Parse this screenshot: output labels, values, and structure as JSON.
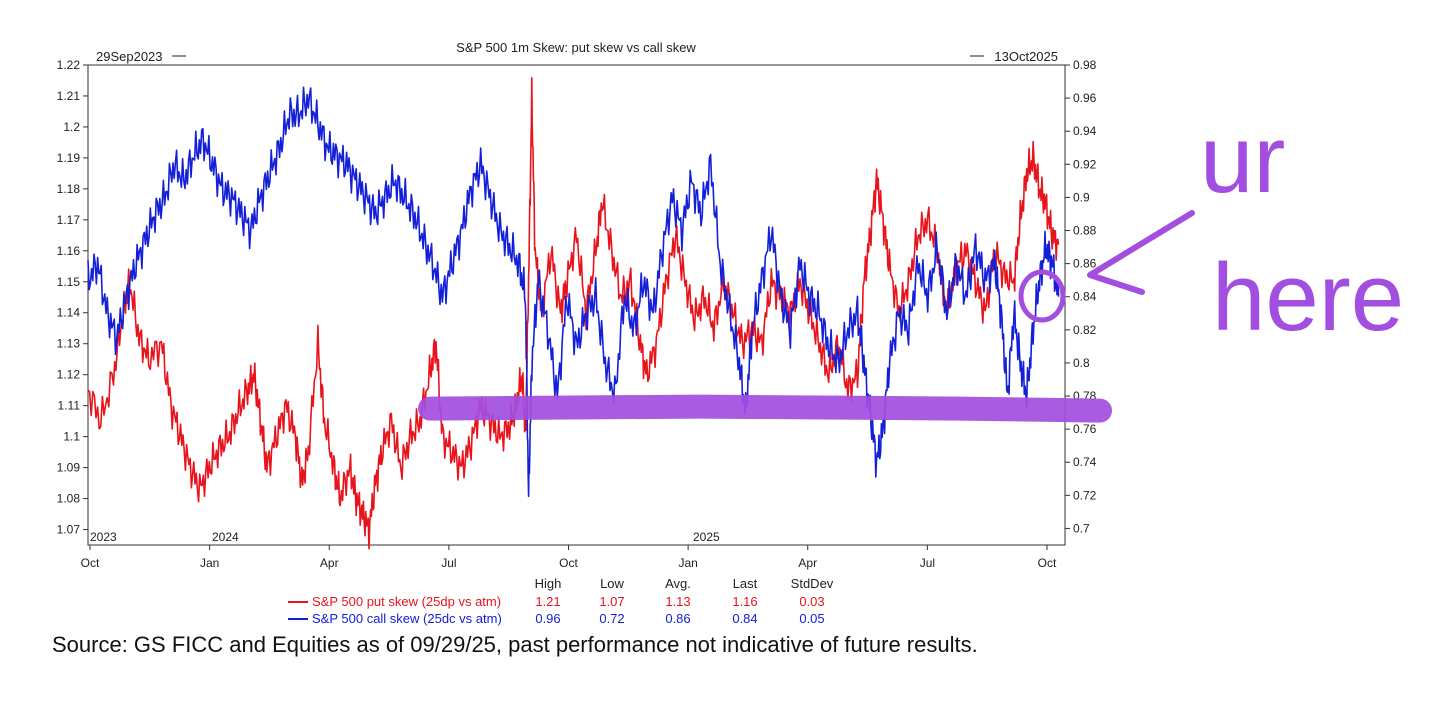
{
  "chart_data": {
    "type": "line",
    "title": "S&P 500 1m Skew: put skew vs call skew",
    "start_date_label": "29Sep2023",
    "end_date_label": "13Oct2025",
    "x_tick_labels": [
      "Oct",
      "Jan",
      "Apr",
      "Jul",
      "Oct",
      "Jan",
      "Apr",
      "Jul",
      "Oct"
    ],
    "x_year_labels": [
      "2023",
      "2024",
      "2025"
    ],
    "left_axis": {
      "ylim": [
        1.065,
        1.22
      ],
      "ticks": [
        "1.07",
        "1.08",
        "1.09",
        "1.1",
        "1.11",
        "1.12",
        "1.13",
        "1.14",
        "1.15",
        "1.16",
        "1.17",
        "1.18",
        "1.19",
        "1.2",
        "1.21",
        "1.22"
      ]
    },
    "right_axis": {
      "ylim": [
        0.69,
        0.98
      ],
      "ticks": [
        "0.7",
        "0.72",
        "0.74",
        "0.76",
        "0.78",
        "0.8",
        "0.82",
        "0.84",
        "0.86",
        "0.88",
        "0.9",
        "0.92",
        "0.94",
        "0.96",
        "0.98"
      ]
    },
    "series": [
      {
        "name": "S&P 500 put skew (25dp vs atm)",
        "axis": "left",
        "color": "#e8141c",
        "points": [
          [
            0,
            1.115
          ],
          [
            0.4,
            1.105
          ],
          [
            0.8,
            1.12
          ],
          [
            1.1,
            1.14
          ],
          [
            1.3,
            1.15
          ],
          [
            1.6,
            1.132
          ],
          [
            1.9,
            1.125
          ],
          [
            2.3,
            1.13
          ],
          [
            2.6,
            1.11
          ],
          [
            2.9,
            1.1
          ],
          [
            3.2,
            1.09
          ],
          [
            3.5,
            1.083
          ],
          [
            3.8,
            1.09
          ],
          [
            4.1,
            1.096
          ],
          [
            4.4,
            1.1
          ],
          [
            4.7,
            1.108
          ],
          [
            5.0,
            1.115
          ],
          [
            5.2,
            1.12
          ],
          [
            5.4,
            1.106
          ],
          [
            5.6,
            1.09
          ],
          [
            5.9,
            1.1
          ],
          [
            6.2,
            1.11
          ],
          [
            6.5,
            1.1
          ],
          [
            6.7,
            1.085
          ],
          [
            6.9,
            1.095
          ],
          [
            7.2,
            1.13
          ],
          [
            7.4,
            1.105
          ],
          [
            7.7,
            1.09
          ],
          [
            7.9,
            1.08
          ],
          [
            8.2,
            1.09
          ],
          [
            8.4,
            1.08
          ],
          [
            8.6,
            1.075
          ],
          [
            8.8,
            1.07
          ],
          [
            9.0,
            1.085
          ],
          [
            9.2,
            1.095
          ],
          [
            9.5,
            1.105
          ],
          [
            9.8,
            1.09
          ],
          [
            10.1,
            1.1
          ],
          [
            10.4,
            1.105
          ],
          [
            10.7,
            1.12
          ],
          [
            10.9,
            1.13
          ],
          [
            11.1,
            1.1
          ],
          [
            11.4,
            1.095
          ],
          [
            11.7,
            1.09
          ],
          [
            12.0,
            1.098
          ],
          [
            12.3,
            1.11
          ],
          [
            12.6,
            1.105
          ],
          [
            12.9,
            1.1
          ],
          [
            13.2,
            1.103
          ],
          [
            13.4,
            1.11
          ],
          [
            13.6,
            1.12
          ],
          [
            13.7,
            1.1
          ],
          [
            13.8,
            1.15
          ],
          [
            13.9,
            1.21
          ],
          [
            14.0,
            1.16
          ],
          [
            14.2,
            1.14
          ],
          [
            14.5,
            1.16
          ],
          [
            14.8,
            1.14
          ],
          [
            15.0,
            1.15
          ],
          [
            15.3,
            1.165
          ],
          [
            15.6,
            1.14
          ],
          [
            15.9,
            1.16
          ],
          [
            16.1,
            1.176
          ],
          [
            16.4,
            1.16
          ],
          [
            16.7,
            1.145
          ],
          [
            17.0,
            1.15
          ],
          [
            17.3,
            1.13
          ],
          [
            17.5,
            1.12
          ],
          [
            17.8,
            1.13
          ],
          [
            18.1,
            1.15
          ],
          [
            18.4,
            1.165
          ],
          [
            18.7,
            1.15
          ],
          [
            19.0,
            1.138
          ],
          [
            19.3,
            1.145
          ],
          [
            19.6,
            1.135
          ],
          [
            19.9,
            1.15
          ],
          [
            20.2,
            1.14
          ],
          [
            20.5,
            1.13
          ],
          [
            20.8,
            1.135
          ],
          [
            21.1,
            1.13
          ],
          [
            21.4,
            1.15
          ],
          [
            21.7,
            1.145
          ],
          [
            22.0,
            1.14
          ],
          [
            22.3,
            1.15
          ],
          [
            22.6,
            1.14
          ],
          [
            22.9,
            1.13
          ],
          [
            23.2,
            1.12
          ],
          [
            23.5,
            1.13
          ],
          [
            23.8,
            1.115
          ],
          [
            24.1,
            1.12
          ],
          [
            24.3,
            1.15
          ],
          [
            24.5,
            1.165
          ],
          [
            24.7,
            1.183
          ],
          [
            24.9,
            1.17
          ],
          [
            25.1,
            1.155
          ],
          [
            25.4,
            1.14
          ],
          [
            25.7,
            1.15
          ],
          [
            26.0,
            1.165
          ],
          [
            26.3,
            1.17
          ],
          [
            26.6,
            1.16
          ],
          [
            26.9,
            1.14
          ],
          [
            27.2,
            1.155
          ],
          [
            27.5,
            1.16
          ],
          [
            27.8,
            1.15
          ],
          [
            28.1,
            1.14
          ],
          [
            28.4,
            1.16
          ],
          [
            28.7,
            1.152
          ],
          [
            29.0,
            1.15
          ],
          [
            29.2,
            1.17
          ],
          [
            29.4,
            1.185
          ],
          [
            29.6,
            1.19
          ],
          [
            29.8,
            1.18
          ],
          [
            30.0,
            1.175
          ],
          [
            30.2,
            1.165
          ],
          [
            30.4,
            1.162
          ]
        ]
      },
      {
        "name": "S&P 500 call skew (25dc vs atm)",
        "axis": "right",
        "color": "#1420d8",
        "points": [
          [
            0,
            0.85
          ],
          [
            0.3,
            0.86
          ],
          [
            0.6,
            0.83
          ],
          [
            0.9,
            0.815
          ],
          [
            1.2,
            0.84
          ],
          [
            1.5,
            0.86
          ],
          [
            1.8,
            0.875
          ],
          [
            2.1,
            0.89
          ],
          [
            2.4,
            0.9
          ],
          [
            2.7,
            0.92
          ],
          [
            3.0,
            0.91
          ],
          [
            3.3,
            0.925
          ],
          [
            3.6,
            0.935
          ],
          [
            3.9,
            0.92
          ],
          [
            4.2,
            0.905
          ],
          [
            4.5,
            0.9
          ],
          [
            4.8,
            0.89
          ],
          [
            5.1,
            0.88
          ],
          [
            5.4,
            0.9
          ],
          [
            5.7,
            0.915
          ],
          [
            6.0,
            0.93
          ],
          [
            6.3,
            0.95
          ],
          [
            6.6,
            0.95
          ],
          [
            6.9,
            0.96
          ],
          [
            7.2,
            0.945
          ],
          [
            7.5,
            0.93
          ],
          [
            7.8,
            0.925
          ],
          [
            8.1,
            0.92
          ],
          [
            8.4,
            0.91
          ],
          [
            8.7,
            0.9
          ],
          [
            9.0,
            0.89
          ],
          [
            9.3,
            0.9
          ],
          [
            9.6,
            0.91
          ],
          [
            9.9,
            0.9
          ],
          [
            10.2,
            0.89
          ],
          [
            10.5,
            0.875
          ],
          [
            10.8,
            0.86
          ],
          [
            11.1,
            0.84
          ],
          [
            11.4,
            0.86
          ],
          [
            11.7,
            0.88
          ],
          [
            12.0,
            0.905
          ],
          [
            12.3,
            0.92
          ],
          [
            12.6,
            0.9
          ],
          [
            12.9,
            0.88
          ],
          [
            13.2,
            0.87
          ],
          [
            13.5,
            0.86
          ],
          [
            13.7,
            0.84
          ],
          [
            13.8,
            0.72
          ],
          [
            13.9,
            0.8
          ],
          [
            14.1,
            0.85
          ],
          [
            14.4,
            0.82
          ],
          [
            14.7,
            0.78
          ],
          [
            15.0,
            0.84
          ],
          [
            15.3,
            0.81
          ],
          [
            15.6,
            0.83
          ],
          [
            15.9,
            0.84
          ],
          [
            16.2,
            0.8
          ],
          [
            16.5,
            0.78
          ],
          [
            16.8,
            0.84
          ],
          [
            17.1,
            0.82
          ],
          [
            17.4,
            0.85
          ],
          [
            17.7,
            0.83
          ],
          [
            18.0,
            0.87
          ],
          [
            18.3,
            0.9
          ],
          [
            18.6,
            0.88
          ],
          [
            18.9,
            0.91
          ],
          [
            19.2,
            0.89
          ],
          [
            19.5,
            0.92
          ],
          [
            19.8,
            0.86
          ],
          [
            20.1,
            0.83
          ],
          [
            20.4,
            0.8
          ],
          [
            20.6,
            0.77
          ],
          [
            20.8,
            0.82
          ],
          [
            21.1,
            0.85
          ],
          [
            21.4,
            0.88
          ],
          [
            21.7,
            0.84
          ],
          [
            22.0,
            0.82
          ],
          [
            22.3,
            0.86
          ],
          [
            22.6,
            0.84
          ],
          [
            22.9,
            0.83
          ],
          [
            23.2,
            0.81
          ],
          [
            23.5,
            0.8
          ],
          [
            23.8,
            0.82
          ],
          [
            24.1,
            0.83
          ],
          [
            24.3,
            0.8
          ],
          [
            24.5,
            0.77
          ],
          [
            24.7,
            0.74
          ],
          [
            24.9,
            0.76
          ],
          [
            25.1,
            0.8
          ],
          [
            25.4,
            0.83
          ],
          [
            25.7,
            0.82
          ],
          [
            26.0,
            0.86
          ],
          [
            26.3,
            0.84
          ],
          [
            26.6,
            0.87
          ],
          [
            26.9,
            0.83
          ],
          [
            27.2,
            0.86
          ],
          [
            27.5,
            0.84
          ],
          [
            27.8,
            0.87
          ],
          [
            28.1,
            0.85
          ],
          [
            28.4,
            0.86
          ],
          [
            28.6,
            0.83
          ],
          [
            28.8,
            0.78
          ],
          [
            29.0,
            0.83
          ],
          [
            29.2,
            0.8
          ],
          [
            29.4,
            0.78
          ],
          [
            29.6,
            0.82
          ],
          [
            29.8,
            0.85
          ],
          [
            30.0,
            0.87
          ],
          [
            30.2,
            0.86
          ],
          [
            30.4,
            0.84
          ]
        ]
      }
    ],
    "legend": {
      "headers": [
        "High",
        "Low",
        "Avg.",
        "Last",
        "StdDev"
      ],
      "rows": [
        {
          "label": "S&P 500 put skew (25dp vs atm)",
          "values": [
            "1.21",
            "1.07",
            "1.13",
            "1.16",
            "0.03"
          ]
        },
        {
          "label": "S&P 500 call skew (25dc vs atm)",
          "values": [
            "0.96",
            "0.72",
            "0.86",
            "0.84",
            "0.05"
          ]
        }
      ]
    },
    "annotations": {
      "handwritten_text": [
        "ur",
        "here"
      ],
      "highlight_level_right_axis": 0.77,
      "highlight_color": "#a24ee0"
    }
  },
  "source_note": "Source: GS FICC and Equities as of 09/29/25, past performance not indicative of future results."
}
